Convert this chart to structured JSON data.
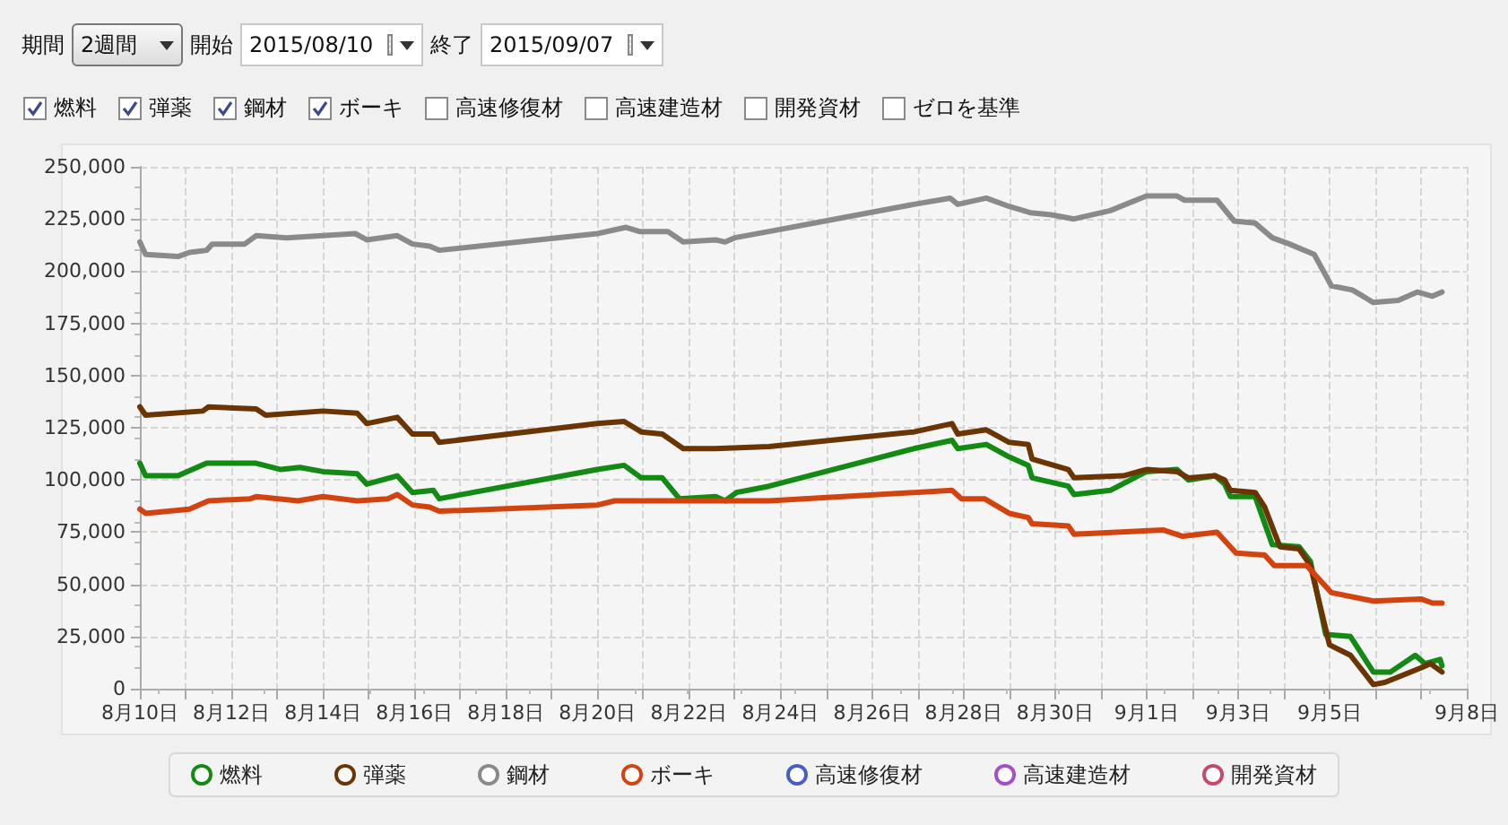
{
  "chart_data": {
    "type": "line",
    "annotations": [
      "期間",
      "2週間",
      "開始",
      "2015/08/10",
      "終了",
      "2015/09/07",
      "ゼロを基準"
    ],
    "xlim": [
      "2015-08-10",
      "2015-09-08"
    ],
    "xticks": [
      {
        "value": "2015-08-10",
        "label": "8月10日"
      },
      {
        "value": "2015-08-11",
        "label": null
      },
      {
        "value": "2015-08-12",
        "label": "8月12日"
      },
      {
        "value": "2015-08-13",
        "label": null
      },
      {
        "value": "2015-08-14",
        "label": "8月14日"
      },
      {
        "value": "2015-08-15",
        "label": null
      },
      {
        "value": "2015-08-16",
        "label": "8月16日"
      },
      {
        "value": "2015-08-17",
        "label": null
      },
      {
        "value": "2015-08-18",
        "label": "8月18日"
      },
      {
        "value": "2015-08-19",
        "label": null
      },
      {
        "value": "2015-08-20",
        "label": "8月20日"
      },
      {
        "value": "2015-08-21",
        "label": null
      },
      {
        "value": "2015-08-22",
        "label": "8月22日"
      },
      {
        "value": "2015-08-23",
        "label": null
      },
      {
        "value": "2015-08-24",
        "label": "8月24日"
      },
      {
        "value": "2015-08-25",
        "label": null
      },
      {
        "value": "2015-08-26",
        "label": "8月26日"
      },
      {
        "value": "2015-08-27",
        "label": null
      },
      {
        "value": "2015-08-28",
        "label": "8月28日"
      },
      {
        "value": "2015-08-29",
        "label": null
      },
      {
        "value": "2015-08-30",
        "label": "8月30日"
      },
      {
        "value": "2015-08-31",
        "label": null
      },
      {
        "value": "2015-09-01",
        "label": "9月1日"
      },
      {
        "value": "2015-09-02",
        "label": null
      },
      {
        "value": "2015-09-03",
        "label": "9月3日"
      },
      {
        "value": "2015-09-04",
        "label": null
      },
      {
        "value": "2015-09-05",
        "label": "9月5日"
      },
      {
        "value": "2015-09-06",
        "label": null
      },
      {
        "value": "2015-09-07",
        "label": null
      },
      {
        "value": "2015-09-08",
        "label": "9月8日"
      }
    ],
    "ylim": [
      0,
      250000
    ],
    "yticks": [
      0,
      {
        "value": 25000,
        "label": "25,000"
      },
      {
        "value": 50000,
        "label": "50,000"
      },
      {
        "value": 75000,
        "label": "75,000"
      },
      {
        "value": 100000,
        "label": "100,000"
      },
      {
        "value": 125000,
        "label": "125,000"
      },
      {
        "value": 150000,
        "label": "150,000"
      },
      {
        "value": 175000,
        "label": "175,000"
      },
      {
        "value": 200000,
        "label": "200,000"
      },
      {
        "value": 225000,
        "label": "225,000"
      },
      {
        "value": 250000,
        "label": "250,000"
      }
    ],
    "grid": true,
    "legend": "bottom",
    "marker": "none",
    "line_style": "solid",
    "series": [
      {
        "name": "燃料",
        "color": "#138a13",
        "x": [
          "2015-08-10T00:00",
          "2015-08-10T03:00",
          "2015-08-10T20:00",
          "2015-08-11T11:00",
          "2015-08-12T13:00",
          "2015-08-13T02:00",
          "2015-08-13T12:00",
          "2015-08-14T00:00",
          "2015-08-14T18:00",
          "2015-08-14T23:00",
          "2015-08-15T15:00",
          "2015-08-15T23:00",
          "2015-08-16T10:00",
          "2015-08-16T13:00",
          "2015-08-20T00:00",
          "2015-08-20T14:00",
          "2015-08-20T23:00",
          "2015-08-21T10:00",
          "2015-08-21T19:00",
          "2015-08-22T14:00",
          "2015-08-22T19:00",
          "2015-08-23T01:00",
          "2015-08-23T18:00",
          "2015-08-26T22:00",
          "2015-08-27T18:00",
          "2015-08-27T21:00",
          "2015-08-28T12:00",
          "2015-08-29T00:00",
          "2015-08-29T10:00",
          "2015-08-29T12:00",
          "2015-08-30T07:00",
          "2015-08-30T10:00",
          "2015-08-31T05:00",
          "2015-09-01T00:00",
          "2015-09-01T16:00",
          "2015-09-01T22:00",
          "2015-09-02T12:00",
          "2015-09-02T17:00",
          "2015-09-02T20:00",
          "2015-09-03T09:00",
          "2015-09-03T18:00",
          "2015-09-04T08:00",
          "2015-09-04T14:00",
          "2015-09-04T22:00",
          "2015-09-05T11:00",
          "2015-09-05T23:00",
          "2015-09-06T08:00",
          "2015-09-06T21:00",
          "2015-09-07T02:00",
          "2015-09-07T10:00",
          "2015-09-07T11:00"
        ],
        "values": [
          108000,
          102000,
          102000,
          108000,
          108000,
          105000,
          106000,
          104000,
          103000,
          98000,
          102000,
          94000,
          95000,
          91000,
          105000,
          107000,
          101000,
          101000,
          91000,
          92000,
          90000,
          94000,
          97000,
          115000,
          119000,
          115000,
          117000,
          111000,
          107000,
          101000,
          97000,
          93000,
          95000,
          104000,
          105000,
          100000,
          102000,
          98000,
          92000,
          92000,
          69000,
          68000,
          61000,
          26000,
          25000,
          8000,
          8000,
          16000,
          12000,
          14000,
          11000
        ]
      },
      {
        "name": "弾薬",
        "color": "#6b3503",
        "x": [
          "2015-08-10T00:00",
          "2015-08-10T03:00",
          "2015-08-11T09:00",
          "2015-08-11T12:00",
          "2015-08-12T13:00",
          "2015-08-12T18:00",
          "2015-08-14T00:00",
          "2015-08-14T18:00",
          "2015-08-14T23:00",
          "2015-08-15T15:00",
          "2015-08-15T23:00",
          "2015-08-16T10:00",
          "2015-08-16T13:00",
          "2015-08-20T00:00",
          "2015-08-20T14:00",
          "2015-08-20T23:00",
          "2015-08-21T10:00",
          "2015-08-21T21:00",
          "2015-08-22T14:00",
          "2015-08-23T18:00",
          "2015-08-26T22:00",
          "2015-08-27T18:00",
          "2015-08-27T21:00",
          "2015-08-28T12:00",
          "2015-08-29T00:00",
          "2015-08-29T10:00",
          "2015-08-29T12:00",
          "2015-08-30T07:00",
          "2015-08-30T10:00",
          "2015-08-31T12:00",
          "2015-09-01T00:00",
          "2015-09-01T16:00",
          "2015-09-01T22:00",
          "2015-09-02T12:00",
          "2015-09-02T17:00",
          "2015-09-02T20:00",
          "2015-09-03T09:00",
          "2015-09-03T14:00",
          "2015-09-03T22:00",
          "2015-09-04T08:00",
          "2015-09-04T14:00",
          "2015-09-05T00:00",
          "2015-09-05T11:00",
          "2015-09-05T23:00",
          "2015-09-06T05:00",
          "2015-09-07T00:00",
          "2015-09-07T05:00",
          "2015-09-07T11:00"
        ],
        "values": [
          135000,
          131000,
          133000,
          135000,
          134000,
          131000,
          133000,
          132000,
          127000,
          130000,
          122000,
          122000,
          118000,
          127000,
          128000,
          123000,
          122000,
          115000,
          115000,
          116000,
          123000,
          127000,
          122000,
          124000,
          118000,
          117000,
          110000,
          105000,
          101000,
          102000,
          105000,
          104000,
          101000,
          102000,
          100000,
          95000,
          94000,
          87000,
          68000,
          67000,
          59000,
          21000,
          16000,
          2000,
          3000,
          10000,
          12000,
          8000
        ]
      },
      {
        "name": "鋼材",
        "color": "#8a8a8a",
        "x": [
          "2015-08-10T00:00",
          "2015-08-10T03:00",
          "2015-08-10T20:00",
          "2015-08-11T02:00",
          "2015-08-11T11:00",
          "2015-08-11T14:00",
          "2015-08-12T07:00",
          "2015-08-12T13:00",
          "2015-08-13T05:00",
          "2015-08-14T00:00",
          "2015-08-14T17:00",
          "2015-08-14T23:00",
          "2015-08-15T15:00",
          "2015-08-15T23:00",
          "2015-08-16T08:00",
          "2015-08-16T13:00",
          "2015-08-20T00:00",
          "2015-08-20T15:00",
          "2015-08-20T22:00",
          "2015-08-21T13:00",
          "2015-08-21T21:00",
          "2015-08-22T14:00",
          "2015-08-22T19:00",
          "2015-08-23T00:00",
          "2015-08-23T18:00",
          "2015-08-26T22:00",
          "2015-08-27T17:00",
          "2015-08-27T21:00",
          "2015-08-28T12:00",
          "2015-08-29T00:00",
          "2015-08-29T11:00",
          "2015-08-29T22:00",
          "2015-08-30T10:00",
          "2015-08-31T05:00",
          "2015-09-01T00:00",
          "2015-09-01T16:00",
          "2015-09-01T20:00",
          "2015-09-02T13:00",
          "2015-09-02T22:00",
          "2015-09-03T09:00",
          "2015-09-03T18:00",
          "2015-09-04T03:00",
          "2015-09-04T16:00",
          "2015-09-05T01:00",
          "2015-09-05T12:00",
          "2015-09-05T23:00",
          "2015-09-06T12:00",
          "2015-09-06T22:00",
          "2015-09-07T06:00",
          "2015-09-07T11:00"
        ],
        "values": [
          214000,
          208000,
          207000,
          209000,
          210000,
          213000,
          213000,
          217000,
          216000,
          217000,
          218000,
          215000,
          217000,
          213000,
          212000,
          210000,
          218000,
          221000,
          219000,
          219000,
          214000,
          215000,
          214000,
          216000,
          219000,
          232000,
          235000,
          232000,
          235000,
          231000,
          228000,
          227000,
          225000,
          229000,
          236000,
          236000,
          234000,
          234000,
          224000,
          223000,
          216000,
          213000,
          208000,
          193000,
          191000,
          185000,
          186000,
          190000,
          188000,
          190000
        ]
      },
      {
        "name": "ボーキ",
        "color": "#d2430f",
        "x": [
          "2015-08-10T00:00",
          "2015-08-10T03:00",
          "2015-08-11T02:00",
          "2015-08-11T12:00",
          "2015-08-12T10:00",
          "2015-08-12T13:00",
          "2015-08-13T11:00",
          "2015-08-14T00:00",
          "2015-08-14T18:00",
          "2015-08-15T10:00",
          "2015-08-15T15:00",
          "2015-08-15T23:00",
          "2015-08-16T08:00",
          "2015-08-16T13:00",
          "2015-08-20T00:00",
          "2015-08-20T09:00",
          "2015-08-23T18:00",
          "2015-08-27T18:00",
          "2015-08-27T23:00",
          "2015-08-28T11:00",
          "2015-08-29T00:00",
          "2015-08-29T10:00",
          "2015-08-29T12:00",
          "2015-08-30T07:00",
          "2015-08-30T10:00",
          "2015-09-01T09:00",
          "2015-09-01T19:00",
          "2015-09-02T13:00",
          "2015-09-02T23:00",
          "2015-09-03T14:00",
          "2015-09-03T19:00",
          "2015-09-04T12:00",
          "2015-09-05T01:00",
          "2015-09-05T23:00",
          "2015-09-07T00:00",
          "2015-09-07T06:00",
          "2015-09-07T11:00"
        ],
        "values": [
          86000,
          84000,
          86000,
          90000,
          91000,
          92000,
          90000,
          92000,
          90000,
          91000,
          93000,
          88000,
          87000,
          85000,
          88000,
          90000,
          90000,
          95000,
          91000,
          91000,
          84000,
          82000,
          79000,
          78000,
          74000,
          76000,
          73000,
          75000,
          65000,
          64000,
          59000,
          59000,
          46000,
          42000,
          43000,
          41000,
          41000
        ]
      },
      {
        "name": "高速修復材",
        "color": "#4a5cc4"
      },
      {
        "name": "高速建造材",
        "color": "#a24fc9"
      },
      {
        "name": "開発資材",
        "color": "#c24b6c"
      }
    ]
  }
}
